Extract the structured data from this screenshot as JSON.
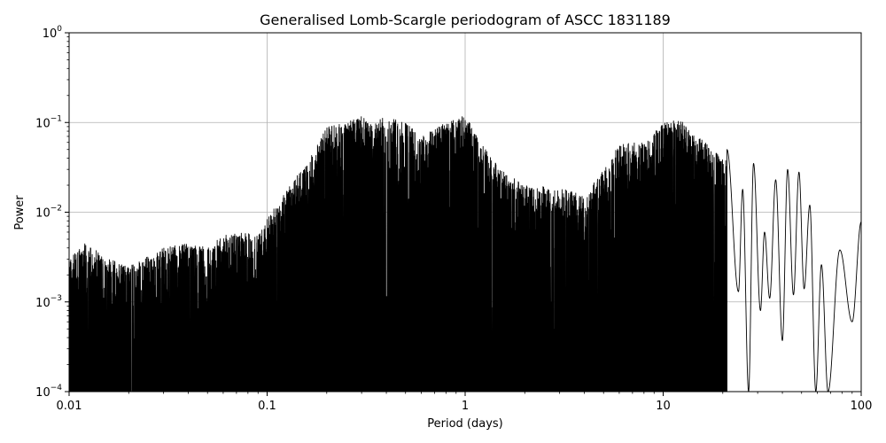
{
  "chart_data": {
    "type": "line",
    "title": "Generalised Lomb-Scargle periodogram of ASCC 1831189",
    "xlabel": "Period (days)",
    "ylabel": "Power",
    "xscale": "log",
    "yscale": "log",
    "xlim": [
      0.01,
      100
    ],
    "ylim": [
      0.0001,
      1
    ],
    "grid": true,
    "x_ticks": [
      {
        "value": 0.01,
        "label": "0.01"
      },
      {
        "value": 0.1,
        "label": "0.1"
      },
      {
        "value": 1,
        "label": "1"
      },
      {
        "value": 10,
        "label": "10"
      },
      {
        "value": 100,
        "label": "100"
      }
    ],
    "y_ticks": [
      {
        "value": 0.0001,
        "base": "10",
        "exp": "−4"
      },
      {
        "value": 0.001,
        "base": "10",
        "exp": "−3"
      },
      {
        "value": 0.01,
        "base": "10",
        "exp": "−2"
      },
      {
        "value": 0.1,
        "base": "10",
        "exp": "−1"
      },
      {
        "value": 1,
        "base": "10",
        "exp": "0"
      }
    ],
    "series": [
      {
        "color": "#000000",
        "envelope": [
          {
            "x": 0.01,
            "y": 0.003
          },
          {
            "x": 0.012,
            "y": 0.0045
          },
          {
            "x": 0.015,
            "y": 0.0033
          },
          {
            "x": 0.02,
            "y": 0.0025
          },
          {
            "x": 0.03,
            "y": 0.004
          },
          {
            "x": 0.04,
            "y": 0.0045
          },
          {
            "x": 0.05,
            "y": 0.004
          },
          {
            "x": 0.06,
            "y": 0.0055
          },
          {
            "x": 0.08,
            "y": 0.006
          },
          {
            "x": 0.09,
            "y": 0.0055
          },
          {
            "x": 0.11,
            "y": 0.012
          },
          {
            "x": 0.13,
            "y": 0.02
          },
          {
            "x": 0.15,
            "y": 0.03
          },
          {
            "x": 0.17,
            "y": 0.045
          },
          {
            "x": 0.2,
            "y": 0.09
          },
          {
            "x": 0.25,
            "y": 0.1
          },
          {
            "x": 0.3,
            "y": 0.12
          },
          {
            "x": 0.35,
            "y": 0.1
          },
          {
            "x": 0.4,
            "y": 0.12
          },
          {
            "x": 0.5,
            "y": 0.1
          },
          {
            "x": 0.6,
            "y": 0.07
          },
          {
            "x": 0.8,
            "y": 0.1
          },
          {
            "x": 1.0,
            "y": 0.12
          },
          {
            "x": 1.2,
            "y": 0.06
          },
          {
            "x": 1.5,
            "y": 0.03
          },
          {
            "x": 2.0,
            "y": 0.02
          },
          {
            "x": 3.0,
            "y": 0.02
          },
          {
            "x": 4.0,
            "y": 0.015
          },
          {
            "x": 5.0,
            "y": 0.03
          },
          {
            "x": 6.0,
            "y": 0.06
          },
          {
            "x": 8.0,
            "y": 0.06
          },
          {
            "x": 10.0,
            "y": 0.1
          },
          {
            "x": 12.0,
            "y": 0.11
          },
          {
            "x": 15.0,
            "y": 0.07
          },
          {
            "x": 20.0,
            "y": 0.04
          },
          {
            "x": 30.0,
            "y": 0.035
          },
          {
            "x": 40.0,
            "y": 0.03
          },
          {
            "x": 50.0,
            "y": 0.03
          },
          {
            "x": 60.0,
            "y": 0.003
          },
          {
            "x": 80.0,
            "y": 0.004
          },
          {
            "x": 100.0,
            "y": 0.008
          }
        ],
        "resolved_peaks": [
          {
            "x": 21.0,
            "y": 0.05
          },
          {
            "x": 25.2,
            "y": 0.018
          },
          {
            "x": 28.6,
            "y": 0.035
          },
          {
            "x": 32.5,
            "y": 0.006
          },
          {
            "x": 37.0,
            "y": 0.023
          },
          {
            "x": 42.5,
            "y": 0.03
          },
          {
            "x": 48.5,
            "y": 0.028
          },
          {
            "x": 55.0,
            "y": 0.012
          },
          {
            "x": 63.0,
            "y": 0.0026
          },
          {
            "x": 78.0,
            "y": 0.0038
          },
          {
            "x": 100.0,
            "y": 0.0078
          }
        ],
        "resolved_troughs": [
          {
            "x": 24.0,
            "y": 0.0013
          },
          {
            "x": 27.0,
            "y": 0.0001
          },
          {
            "x": 31.0,
            "y": 0.0008
          },
          {
            "x": 34.5,
            "y": 0.0011
          },
          {
            "x": 40.0,
            "y": 0.00037
          },
          {
            "x": 45.5,
            "y": 0.0012
          },
          {
            "x": 51.5,
            "y": 0.0014
          },
          {
            "x": 59.0,
            "y": 0.0001
          },
          {
            "x": 68.0,
            "y": 0.0001
          },
          {
            "x": 90.0,
            "y": 0.0006
          }
        ]
      }
    ]
  }
}
